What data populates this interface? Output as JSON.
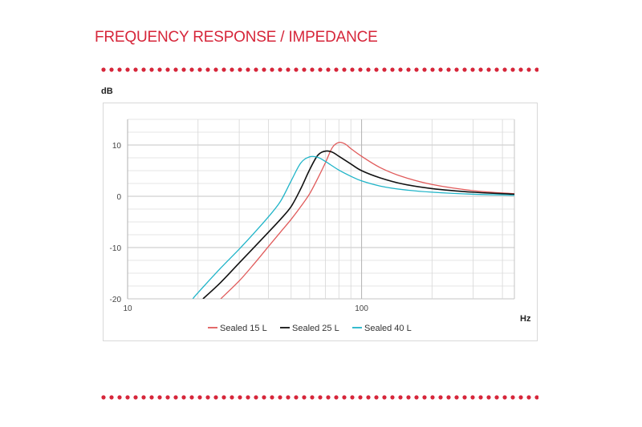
{
  "header": {
    "title": "FREQUENCY RESPONSE / IMPEDANCE",
    "title_color": "#d6263a",
    "dot_color": "#d6263a"
  },
  "chart_data": {
    "type": "line",
    "title": "FREQUENCY RESPONSE / IMPEDANCE",
    "xlabel": "Hz",
    "ylabel": "dB",
    "xscale": "log",
    "xlim": [
      10,
      450
    ],
    "ylim": [
      -20,
      15
    ],
    "x_ticks": [
      10,
      100
    ],
    "x_tick_labels": [
      "10",
      "100"
    ],
    "y_ticks": [
      10,
      0,
      -10,
      -20
    ],
    "y_tick_labels": [
      "10",
      "0",
      "-10",
      "-20"
    ],
    "grid": true,
    "legend_position": "bottom",
    "series": [
      {
        "name": "Sealed 15 L",
        "color": "#e05a5a",
        "points": [
          [
            25,
            -20
          ],
          [
            30,
            -16.5
          ],
          [
            35,
            -13
          ],
          [
            40,
            -9.8
          ],
          [
            45,
            -7
          ],
          [
            50,
            -4.5
          ],
          [
            55,
            -2
          ],
          [
            60,
            0.5
          ],
          [
            65,
            3.5
          ],
          [
            70,
            6.5
          ],
          [
            75,
            9.5
          ],
          [
            80,
            10.5
          ],
          [
            85,
            10.2
          ],
          [
            90,
            9.3
          ],
          [
            100,
            7.8
          ],
          [
            120,
            5.6
          ],
          [
            150,
            3.8
          ],
          [
            200,
            2.3
          ],
          [
            300,
            1.1
          ],
          [
            450,
            0.5
          ]
        ]
      },
      {
        "name": "Sealed 25 L",
        "color": "#111111",
        "points": [
          [
            21,
            -20
          ],
          [
            25,
            -16.8
          ],
          [
            30,
            -13
          ],
          [
            35,
            -9.8
          ],
          [
            40,
            -7
          ],
          [
            45,
            -4.5
          ],
          [
            50,
            -2
          ],
          [
            55,
            1.5
          ],
          [
            60,
            5.2
          ],
          [
            65,
            8
          ],
          [
            70,
            8.8
          ],
          [
            75,
            8.6
          ],
          [
            80,
            7.8
          ],
          [
            90,
            6.3
          ],
          [
            100,
            5
          ],
          [
            120,
            3.6
          ],
          [
            150,
            2.4
          ],
          [
            200,
            1.5
          ],
          [
            300,
            0.8
          ],
          [
            450,
            0.4
          ]
        ]
      },
      {
        "name": "Sealed 40 L",
        "color": "#1fb4c8",
        "points": [
          [
            19,
            -20
          ],
          [
            20,
            -18.8
          ],
          [
            25,
            -14
          ],
          [
            30,
            -10.3
          ],
          [
            35,
            -7
          ],
          [
            40,
            -4
          ],
          [
            45,
            -1
          ],
          [
            50,
            3
          ],
          [
            55,
            6.5
          ],
          [
            60,
            7.7
          ],
          [
            65,
            7.6
          ],
          [
            70,
            6.8
          ],
          [
            80,
            5.1
          ],
          [
            90,
            3.9
          ],
          [
            100,
            3
          ],
          [
            120,
            2
          ],
          [
            150,
            1.3
          ],
          [
            200,
            0.8
          ],
          [
            300,
            0.4
          ],
          [
            450,
            0.2
          ]
        ]
      }
    ]
  }
}
